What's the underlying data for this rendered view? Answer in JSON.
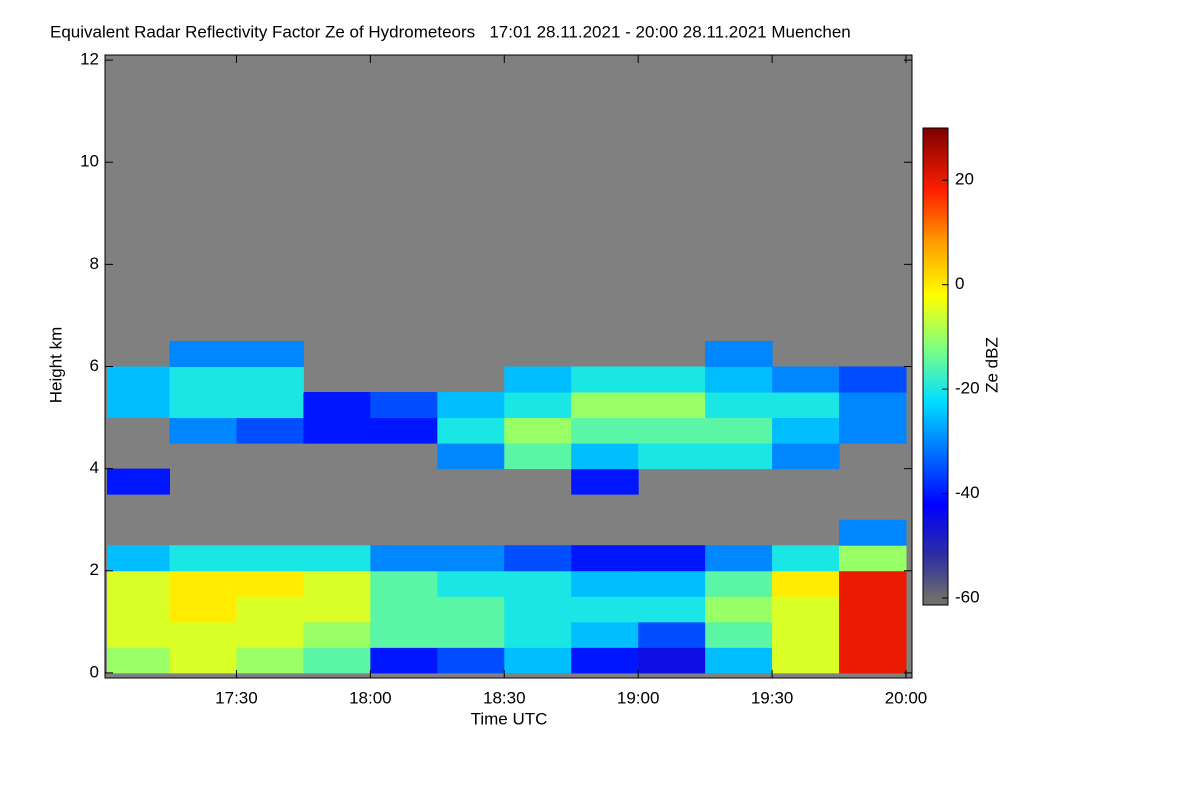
{
  "chart_data": {
    "type": "heatmap",
    "title": "Equivalent Radar Reflectivity Factor Ze of Hydrometeors   17:01 28.11.2021 - 20:00 28.11.2021 Muenchen",
    "x_label": "Time UTC",
    "y_label": "Height km",
    "colorbar_label": "Ze dBZ",
    "xlim": [
      "17:01",
      "20:00"
    ],
    "xticks": [
      "17:30",
      "18:00",
      "18:30",
      "19:00",
      "19:30",
      "20:00"
    ],
    "ylim": [
      -0.1,
      12.1
    ],
    "yticks": [
      0,
      2,
      4,
      6,
      8,
      10,
      12
    ],
    "zlim": [
      -60,
      30
    ],
    "zticks": [
      -60,
      -40,
      -20,
      0,
      20
    ],
    "background": "#808080",
    "colormap": [
      {
        "value": -60,
        "color": "#6e6e6e"
      },
      {
        "value": -52,
        "color": "#3030a0"
      },
      {
        "value": -42,
        "color": "#0000ff"
      },
      {
        "value": -32,
        "color": "#0070ff"
      },
      {
        "value": -22,
        "color": "#00e0ff"
      },
      {
        "value": -12,
        "color": "#80ff80"
      },
      {
        "value": -2,
        "color": "#ffff00"
      },
      {
        "value": 8,
        "color": "#ffa000"
      },
      {
        "value": 18,
        "color": "#ff2000"
      },
      {
        "value": 30,
        "color": "#800000"
      }
    ],
    "x": [
      "17:01",
      "17:15",
      "17:30",
      "17:45",
      "18:00",
      "18:15",
      "18:30",
      "18:45",
      "19:00",
      "19:15",
      "19:30",
      "19:45",
      "20:00"
    ],
    "y": [
      0,
      0.5,
      1,
      1.5,
      2,
      2.5,
      3,
      3.5,
      4,
      4.5,
      5,
      5.5,
      6,
      6.5
    ],
    "z": [
      [
        -10,
        -5,
        -10,
        -15,
        -40,
        -35,
        -25,
        -40,
        -45,
        -25,
        -5,
        20
      ],
      [
        -5,
        -5,
        -5,
        -10,
        -15,
        -15,
        -20,
        -25,
        -35,
        -15,
        -5,
        20
      ],
      [
        -5,
        0,
        -5,
        -5,
        -15,
        -15,
        -20,
        -20,
        -20,
        -10,
        -5,
        20
      ],
      [
        -5,
        0,
        0,
        -5,
        -15,
        -20,
        -20,
        -25,
        -25,
        -15,
        0,
        20
      ],
      [
        -25,
        -20,
        -20,
        -20,
        -30,
        -30,
        -35,
        -40,
        -40,
        -30,
        -20,
        -10
      ],
      [
        null,
        null,
        null,
        null,
        null,
        null,
        null,
        null,
        null,
        null,
        null,
        -30
      ],
      [
        null,
        null,
        null,
        null,
        null,
        null,
        null,
        null,
        null,
        null,
        null,
        null
      ],
      [
        -40,
        null,
        null,
        null,
        null,
        null,
        null,
        -40,
        null,
        null,
        null,
        null
      ],
      [
        null,
        null,
        null,
        null,
        null,
        -30,
        -15,
        -25,
        -20,
        -20,
        -30,
        null
      ],
      [
        null,
        -30,
        -35,
        -40,
        -40,
        -20,
        -10,
        -15,
        -15,
        -15,
        -25,
        -30
      ],
      [
        -25,
        -20,
        -20,
        -40,
        -35,
        -25,
        -20,
        -10,
        -10,
        -20,
        -20,
        -30
      ],
      [
        -25,
        -20,
        -20,
        null,
        null,
        null,
        -25,
        -20,
        -20,
        -25,
        -30,
        -35
      ],
      [
        null,
        -30,
        -30,
        null,
        null,
        null,
        null,
        null,
        null,
        -30,
        null,
        null
      ]
    ]
  }
}
